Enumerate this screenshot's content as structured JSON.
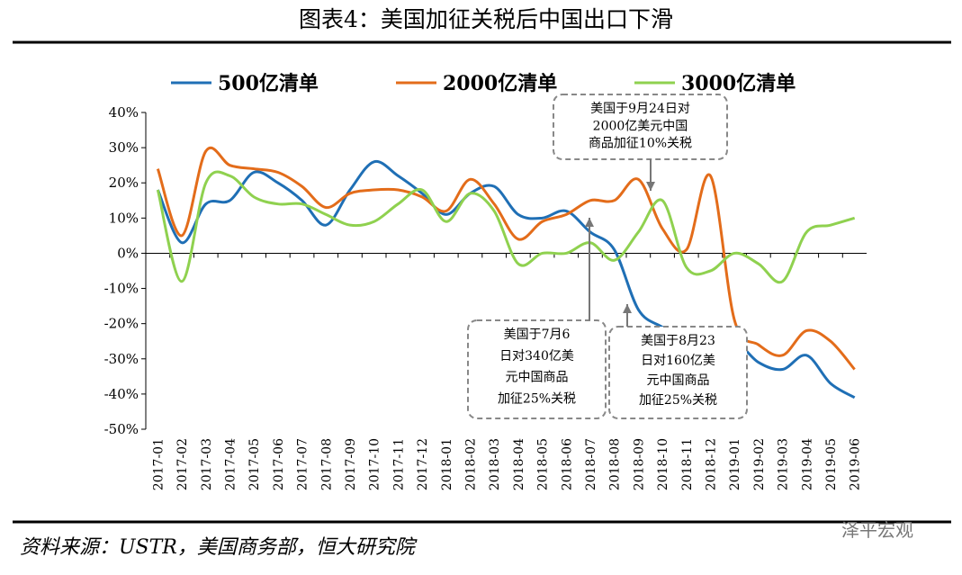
{
  "chart_data": {
    "type": "line",
    "title": "图表4：美国加征关税后中国出口下滑",
    "source": "资料来源：USTR，美国商务部，恒大研究院",
    "watermark": "泽平宏观",
    "categories": [
      "2017-01",
      "2017-02",
      "2017-03",
      "2017-04",
      "2017-05",
      "2017-06",
      "2017-07",
      "2017-08",
      "2017-09",
      "2017-10",
      "2017-11",
      "2017-12",
      "2018-01",
      "2018-02",
      "2018-03",
      "2018-04",
      "2018-05",
      "2018-06",
      "2018-07",
      "2018-08",
      "2018-09",
      "2018-10",
      "2018-11",
      "2018-12",
      "2019-01",
      "2019-02",
      "2019-03",
      "2019-04",
      "2019-05",
      "2019-06"
    ],
    "series": [
      {
        "name": "500亿清单",
        "color": "#1f6fb5",
        "values": [
          18,
          3,
          14,
          15,
          23,
          20,
          15,
          8,
          18,
          26,
          22,
          17,
          11,
          17,
          19,
          11,
          10,
          12,
          6,
          1,
          -16,
          -21,
          -25,
          -27,
          -25,
          -31,
          -33,
          -29,
          -37,
          -41
        ]
      },
      {
        "name": "2000亿清单",
        "color": "#e36c1a",
        "values": [
          24,
          5,
          29,
          25,
          24,
          23,
          19,
          13,
          17,
          18,
          18,
          16,
          12,
          21,
          14,
          4,
          9,
          11,
          15,
          15,
          21,
          7,
          1,
          22,
          -19,
          -26,
          -29,
          -22,
          -25,
          -33
        ]
      },
      {
        "name": "3000亿清单",
        "color": "#8fd14f",
        "values": [
          18,
          -8,
          20,
          22,
          16,
          14,
          14,
          11,
          8,
          9,
          14,
          18,
          9,
          17,
          12,
          -3,
          0,
          0,
          3,
          -2,
          6,
          15,
          -4,
          -5,
          0,
          -3,
          -8,
          6,
          8,
          10
        ]
      }
    ],
    "ylim": [
      -50,
      40
    ],
    "yticks": [
      {
        "value": -50,
        "label": "-50%"
      },
      {
        "value": -40,
        "label": "-40%"
      },
      {
        "value": -30,
        "label": "-30%"
      },
      {
        "value": -20,
        "label": "-20%"
      },
      {
        "value": -10,
        "label": "-10%"
      },
      {
        "value": 0,
        "label": "0%"
      },
      {
        "value": 10,
        "label": "10%"
      },
      {
        "value": 20,
        "label": "20%"
      },
      {
        "value": 30,
        "label": "30%"
      },
      {
        "value": 40,
        "label": "40%"
      }
    ],
    "annotations": [
      {
        "lines": [
          "美国于9月24日对",
          "2000亿美元中国",
          "商品加征10%关税"
        ]
      },
      {
        "lines": [
          "美国于7月6",
          "日对340亿美",
          "元中国商品",
          "加征25%关税"
        ]
      },
      {
        "lines": [
          "美国于8月23",
          "日对160亿美",
          "元中国商品",
          "加征25%关税"
        ]
      }
    ]
  }
}
